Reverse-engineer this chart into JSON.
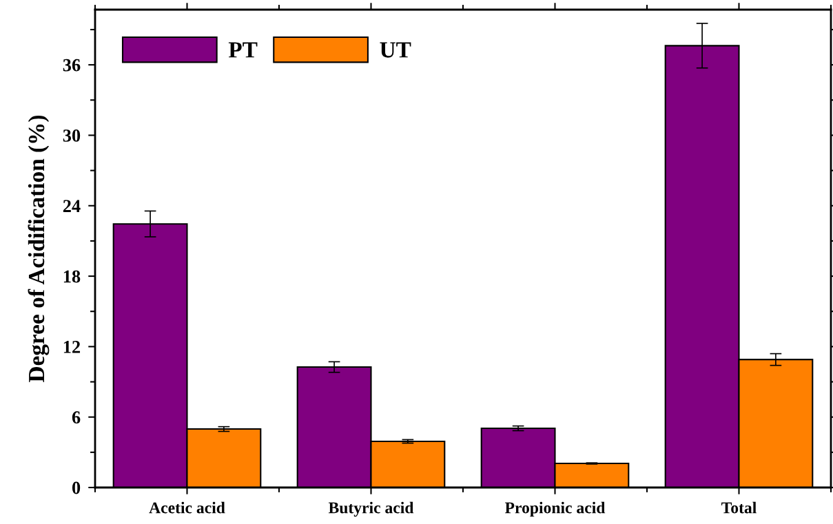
{
  "chart_data": {
    "type": "bar",
    "ylabel": "Degree of Acidification (%)",
    "categories": [
      "Acetic acid",
      "Butyric acid",
      "Propionic acid",
      "Total"
    ],
    "series": [
      {
        "name": "PT",
        "color": "#800080",
        "values": [
          22.45,
          10.26,
          5.04,
          37.63
        ],
        "errors": [
          1.1,
          0.45,
          0.2,
          1.9
        ]
      },
      {
        "name": "UT",
        "color": "#ff8000",
        "values": [
          4.98,
          3.93,
          2.05,
          10.9
        ],
        "errors": [
          0.2,
          0.15,
          0.05,
          0.5
        ]
      }
    ],
    "ylim": [
      0,
      40.7
    ],
    "yticks": [
      0,
      6,
      12,
      18,
      24,
      30,
      36
    ],
    "legend": "top left",
    "grid": false
  }
}
